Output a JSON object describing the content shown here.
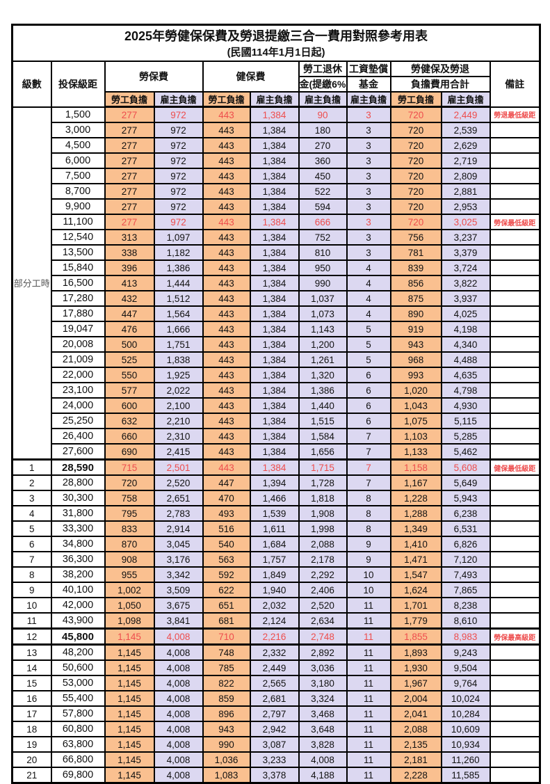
{
  "title": "2025年勞健保保費及勞退提繳三合一費用對照參考用表",
  "subtitle": "(民國114年1月1日起)",
  "colors": {
    "employee_bg": "#FAC090",
    "employer_bg": "#DCD8F1",
    "highlight_red": "#EE4D4D",
    "border": "#000000"
  },
  "header": {
    "level": "級數",
    "bracket": "投保級距",
    "labor_insurance": "勞保費",
    "health_insurance": "健保費",
    "pension_line1": "勞工退休",
    "pension_line2": "金(提繳6%)",
    "wage_fund_line1": "工資墊償",
    "wage_fund_line2": "基金",
    "total_line1": "勞健保及勞退",
    "total_line2": "負擔費用合計",
    "remark": "備註",
    "employee": "勞工負擔",
    "employer": "雇主負擔"
  },
  "part_time": {
    "label": "部分工時",
    "row_span": 23
  },
  "rows": [
    {
      "level": "",
      "bracket": "1,500",
      "li_emp": "277",
      "li_er": "972",
      "hi_emp": "443",
      "hi_er": "1,384",
      "pension": "90",
      "fund": "3",
      "tot_emp": "720",
      "tot_er": "2,449",
      "remark": "勞退最低級距",
      "red": true
    },
    {
      "level": "",
      "bracket": "3,000",
      "li_emp": "277",
      "li_er": "972",
      "hi_emp": "443",
      "hi_er": "1,384",
      "pension": "180",
      "fund": "3",
      "tot_emp": "720",
      "tot_er": "2,539",
      "remark": ""
    },
    {
      "level": "",
      "bracket": "4,500",
      "li_emp": "277",
      "li_er": "972",
      "hi_emp": "443",
      "hi_er": "1,384",
      "pension": "270",
      "fund": "3",
      "tot_emp": "720",
      "tot_er": "2,629",
      "remark": ""
    },
    {
      "level": "",
      "bracket": "6,000",
      "li_emp": "277",
      "li_er": "972",
      "hi_emp": "443",
      "hi_er": "1,384",
      "pension": "360",
      "fund": "3",
      "tot_emp": "720",
      "tot_er": "2,719",
      "remark": ""
    },
    {
      "level": "",
      "bracket": "7,500",
      "li_emp": "277",
      "li_er": "972",
      "hi_emp": "443",
      "hi_er": "1,384",
      "pension": "450",
      "fund": "3",
      "tot_emp": "720",
      "tot_er": "2,809",
      "remark": ""
    },
    {
      "level": "",
      "bracket": "8,700",
      "li_emp": "277",
      "li_er": "972",
      "hi_emp": "443",
      "hi_er": "1,384",
      "pension": "522",
      "fund": "3",
      "tot_emp": "720",
      "tot_er": "2,881",
      "remark": ""
    },
    {
      "level": "",
      "bracket": "9,900",
      "li_emp": "277",
      "li_er": "972",
      "hi_emp": "443",
      "hi_er": "1,384",
      "pension": "594",
      "fund": "3",
      "tot_emp": "720",
      "tot_er": "2,953",
      "remark": ""
    },
    {
      "level": "",
      "bracket": "11,100",
      "li_emp": "277",
      "li_er": "972",
      "hi_emp": "443",
      "hi_er": "1,384",
      "pension": "666",
      "fund": "3",
      "tot_emp": "720",
      "tot_er": "3,025",
      "remark": "勞保最低級距",
      "red": true
    },
    {
      "level": "",
      "bracket": "12,540",
      "li_emp": "313",
      "li_er": "1,097",
      "hi_emp": "443",
      "hi_er": "1,384",
      "pension": "752",
      "fund": "3",
      "tot_emp": "756",
      "tot_er": "3,237",
      "remark": ""
    },
    {
      "level": "",
      "bracket": "13,500",
      "li_emp": "338",
      "li_er": "1,182",
      "hi_emp": "443",
      "hi_er": "1,384",
      "pension": "810",
      "fund": "3",
      "tot_emp": "781",
      "tot_er": "3,379",
      "remark": ""
    },
    {
      "level": "",
      "bracket": "15,840",
      "li_emp": "396",
      "li_er": "1,386",
      "hi_emp": "443",
      "hi_er": "1,384",
      "pension": "950",
      "fund": "4",
      "tot_emp": "839",
      "tot_er": "3,724",
      "remark": ""
    },
    {
      "level": "",
      "bracket": "16,500",
      "li_emp": "413",
      "li_er": "1,444",
      "hi_emp": "443",
      "hi_er": "1,384",
      "pension": "990",
      "fund": "4",
      "tot_emp": "856",
      "tot_er": "3,822",
      "remark": ""
    },
    {
      "level": "",
      "bracket": "17,280",
      "li_emp": "432",
      "li_er": "1,512",
      "hi_emp": "443",
      "hi_er": "1,384",
      "pension": "1,037",
      "fund": "4",
      "tot_emp": "875",
      "tot_er": "3,937",
      "remark": ""
    },
    {
      "level": "",
      "bracket": "17,880",
      "li_emp": "447",
      "li_er": "1,564",
      "hi_emp": "443",
      "hi_er": "1,384",
      "pension": "1,073",
      "fund": "4",
      "tot_emp": "890",
      "tot_er": "4,025",
      "remark": ""
    },
    {
      "level": "",
      "bracket": "19,047",
      "li_emp": "476",
      "li_er": "1,666",
      "hi_emp": "443",
      "hi_er": "1,384",
      "pension": "1,143",
      "fund": "5",
      "tot_emp": "919",
      "tot_er": "4,198",
      "remark": ""
    },
    {
      "level": "",
      "bracket": "20,008",
      "li_emp": "500",
      "li_er": "1,751",
      "hi_emp": "443",
      "hi_er": "1,384",
      "pension": "1,200",
      "fund": "5",
      "tot_emp": "943",
      "tot_er": "4,340",
      "remark": ""
    },
    {
      "level": "",
      "bracket": "21,009",
      "li_emp": "525",
      "li_er": "1,838",
      "hi_emp": "443",
      "hi_er": "1,384",
      "pension": "1,261",
      "fund": "5",
      "tot_emp": "968",
      "tot_er": "4,488",
      "remark": ""
    },
    {
      "level": "",
      "bracket": "22,000",
      "li_emp": "550",
      "li_er": "1,925",
      "hi_emp": "443",
      "hi_er": "1,384",
      "pension": "1,320",
      "fund": "6",
      "tot_emp": "993",
      "tot_er": "4,635",
      "remark": ""
    },
    {
      "level": "",
      "bracket": "23,100",
      "li_emp": "577",
      "li_er": "2,022",
      "hi_emp": "443",
      "hi_er": "1,384",
      "pension": "1,386",
      "fund": "6",
      "tot_emp": "1,020",
      "tot_er": "4,798",
      "remark": ""
    },
    {
      "level": "",
      "bracket": "24,000",
      "li_emp": "600",
      "li_er": "2,100",
      "hi_emp": "443",
      "hi_er": "1,384",
      "pension": "1,440",
      "fund": "6",
      "tot_emp": "1,043",
      "tot_er": "4,930",
      "remark": ""
    },
    {
      "level": "",
      "bracket": "25,250",
      "li_emp": "632",
      "li_er": "2,210",
      "hi_emp": "443",
      "hi_er": "1,384",
      "pension": "1,515",
      "fund": "6",
      "tot_emp": "1,075",
      "tot_er": "5,115",
      "remark": ""
    },
    {
      "level": "",
      "bracket": "26,400",
      "li_emp": "660",
      "li_er": "2,310",
      "hi_emp": "443",
      "hi_er": "1,384",
      "pension": "1,584",
      "fund": "7",
      "tot_emp": "1,103",
      "tot_er": "5,285",
      "remark": ""
    },
    {
      "level": "",
      "bracket": "27,600",
      "li_emp": "690",
      "li_er": "2,415",
      "hi_emp": "443",
      "hi_er": "1,384",
      "pension": "1,656",
      "fund": "7",
      "tot_emp": "1,133",
      "tot_er": "5,462",
      "remark": ""
    },
    {
      "level": "1",
      "bracket": "28,590",
      "li_emp": "715",
      "li_er": "2,501",
      "hi_emp": "443",
      "hi_er": "1,384",
      "pension": "1,715",
      "fund": "7",
      "tot_emp": "1,158",
      "tot_er": "5,608",
      "remark": "健保最低級距",
      "red": true,
      "bold": true,
      "thick_top": true
    },
    {
      "level": "2",
      "bracket": "28,800",
      "li_emp": "720",
      "li_er": "2,520",
      "hi_emp": "447",
      "hi_er": "1,394",
      "pension": "1,728",
      "fund": "7",
      "tot_emp": "1,167",
      "tot_er": "5,649",
      "remark": ""
    },
    {
      "level": "3",
      "bracket": "30,300",
      "li_emp": "758",
      "li_er": "2,651",
      "hi_emp": "470",
      "hi_er": "1,466",
      "pension": "1,818",
      "fund": "8",
      "tot_emp": "1,228",
      "tot_er": "5,943",
      "remark": ""
    },
    {
      "level": "4",
      "bracket": "31,800",
      "li_emp": "795",
      "li_er": "2,783",
      "hi_emp": "493",
      "hi_er": "1,539",
      "pension": "1,908",
      "fund": "8",
      "tot_emp": "1,288",
      "tot_er": "6,238",
      "remark": ""
    },
    {
      "level": "5",
      "bracket": "33,300",
      "li_emp": "833",
      "li_er": "2,914",
      "hi_emp": "516",
      "hi_er": "1,611",
      "pension": "1,998",
      "fund": "8",
      "tot_emp": "1,349",
      "tot_er": "6,531",
      "remark": ""
    },
    {
      "level": "6",
      "bracket": "34,800",
      "li_emp": "870",
      "li_er": "3,045",
      "hi_emp": "540",
      "hi_er": "1,684",
      "pension": "2,088",
      "fund": "9",
      "tot_emp": "1,410",
      "tot_er": "6,826",
      "remark": ""
    },
    {
      "level": "7",
      "bracket": "36,300",
      "li_emp": "908",
      "li_er": "3,176",
      "hi_emp": "563",
      "hi_er": "1,757",
      "pension": "2,178",
      "fund": "9",
      "tot_emp": "1,471",
      "tot_er": "7,120",
      "remark": ""
    },
    {
      "level": "8",
      "bracket": "38,200",
      "li_emp": "955",
      "li_er": "3,342",
      "hi_emp": "592",
      "hi_er": "1,849",
      "pension": "2,292",
      "fund": "10",
      "tot_emp": "1,547",
      "tot_er": "7,493",
      "remark": ""
    },
    {
      "level": "9",
      "bracket": "40,100",
      "li_emp": "1,002",
      "li_er": "3,509",
      "hi_emp": "622",
      "hi_er": "1,940",
      "pension": "2,406",
      "fund": "10",
      "tot_emp": "1,624",
      "tot_er": "7,865",
      "remark": ""
    },
    {
      "level": "10",
      "bracket": "42,000",
      "li_emp": "1,050",
      "li_er": "3,675",
      "hi_emp": "651",
      "hi_er": "2,032",
      "pension": "2,520",
      "fund": "11",
      "tot_emp": "1,701",
      "tot_er": "8,238",
      "remark": ""
    },
    {
      "level": "11",
      "bracket": "43,900",
      "li_emp": "1,098",
      "li_er": "3,841",
      "hi_emp": "681",
      "hi_er": "2,124",
      "pension": "2,634",
      "fund": "11",
      "tot_emp": "1,779",
      "tot_er": "8,610",
      "remark": ""
    },
    {
      "level": "12",
      "bracket": "45,800",
      "li_emp": "1,145",
      "li_er": "4,008",
      "hi_emp": "710",
      "hi_er": "2,216",
      "pension": "2,748",
      "fund": "11",
      "tot_emp": "1,855",
      "tot_er": "8,983",
      "remark": "勞保最高級距",
      "red": true,
      "bold": true,
      "thick_top": true,
      "thick_bottom": true
    },
    {
      "level": "13",
      "bracket": "48,200",
      "li_emp": "1,145",
      "li_er": "4,008",
      "hi_emp": "748",
      "hi_er": "2,332",
      "pension": "2,892",
      "fund": "11",
      "tot_emp": "1,893",
      "tot_er": "9,243",
      "remark": ""
    },
    {
      "level": "14",
      "bracket": "50,600",
      "li_emp": "1,145",
      "li_er": "4,008",
      "hi_emp": "785",
      "hi_er": "2,449",
      "pension": "3,036",
      "fund": "11",
      "tot_emp": "1,930",
      "tot_er": "9,504",
      "remark": ""
    },
    {
      "level": "15",
      "bracket": "53,000",
      "li_emp": "1,145",
      "li_er": "4,008",
      "hi_emp": "822",
      "hi_er": "2,565",
      "pension": "3,180",
      "fund": "11",
      "tot_emp": "1,967",
      "tot_er": "9,764",
      "remark": ""
    },
    {
      "level": "16",
      "bracket": "55,400",
      "li_emp": "1,145",
      "li_er": "4,008",
      "hi_emp": "859",
      "hi_er": "2,681",
      "pension": "3,324",
      "fund": "11",
      "tot_emp": "2,004",
      "tot_er": "10,024",
      "remark": ""
    },
    {
      "level": "17",
      "bracket": "57,800",
      "li_emp": "1,145",
      "li_er": "4,008",
      "hi_emp": "896",
      "hi_er": "2,797",
      "pension": "3,468",
      "fund": "11",
      "tot_emp": "2,041",
      "tot_er": "10,284",
      "remark": ""
    },
    {
      "level": "18",
      "bracket": "60,800",
      "li_emp": "1,145",
      "li_er": "4,008",
      "hi_emp": "943",
      "hi_er": "2,942",
      "pension": "3,648",
      "fund": "11",
      "tot_emp": "2,088",
      "tot_er": "10,609",
      "remark": ""
    },
    {
      "level": "19",
      "bracket": "63,800",
      "li_emp": "1,145",
      "li_er": "4,008",
      "hi_emp": "990",
      "hi_er": "3,087",
      "pension": "3,828",
      "fund": "11",
      "tot_emp": "2,135",
      "tot_er": "10,934",
      "remark": ""
    },
    {
      "level": "20",
      "bracket": "66,800",
      "li_emp": "1,145",
      "li_er": "4,008",
      "hi_emp": "1,036",
      "hi_er": "3,233",
      "pension": "4,008",
      "fund": "11",
      "tot_emp": "2,181",
      "tot_er": "11,260",
      "remark": ""
    },
    {
      "level": "21",
      "bracket": "69,800",
      "li_emp": "1,145",
      "li_er": "4,008",
      "hi_emp": "1,083",
      "hi_er": "3,378",
      "pension": "4,188",
      "fund": "11",
      "tot_emp": "2,228",
      "tot_er": "11,585",
      "remark": ""
    }
  ]
}
